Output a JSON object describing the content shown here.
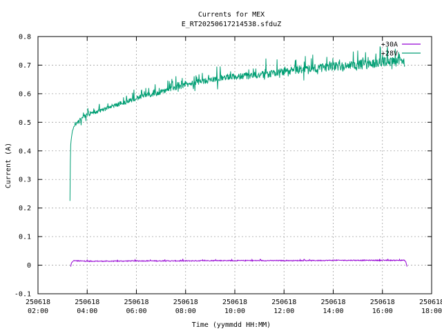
{
  "chart_data": {
    "type": "line",
    "title": "Currents for MEX",
    "subtitle": "E_RT20250617214538.sfduZ",
    "xlabel": "Time (yymmdd HH:MM)",
    "ylabel": "Current (A)",
    "xlim_hours": [
      2,
      18
    ],
    "ylim": [
      -0.1,
      0.8
    ],
    "yticks": [
      -0.1,
      0,
      0.1,
      0.2,
      0.3,
      0.4,
      0.5,
      0.6,
      0.7,
      0.8
    ],
    "ytick_labels": [
      "-0.1",
      "0",
      "0.1",
      "0.2",
      "0.3",
      "0.4",
      "0.5",
      "0.6",
      "0.7",
      "0.8"
    ],
    "xticks": [
      {
        "date": "250618",
        "time": "02:00",
        "hour": 2
      },
      {
        "date": "250618",
        "time": "04:00",
        "hour": 4
      },
      {
        "date": "250618",
        "time": "06:00",
        "hour": 6
      },
      {
        "date": "250618",
        "time": "08:00",
        "hour": 8
      },
      {
        "date": "250618",
        "time": "10:00",
        "hour": 10
      },
      {
        "date": "250618",
        "time": "12:00",
        "hour": 12
      },
      {
        "date": "250618",
        "time": "14:00",
        "hour": 14
      },
      {
        "date": "250618",
        "time": "16:00",
        "hour": 16
      },
      {
        "date": "250618",
        "time": "18:00",
        "hour": 18
      }
    ],
    "grid": true,
    "legend_position": "top-right",
    "series": [
      {
        "name": "+30A",
        "color": "#9400d3",
        "x_hours": [
          3.33,
          3.36,
          3.45,
          3.6,
          4,
          5,
          6,
          7,
          8,
          9,
          10,
          11,
          12,
          13,
          14,
          15,
          16,
          16.6,
          16.9,
          16.95,
          17.0
        ],
        "values": [
          -0.005,
          0.008,
          0.016,
          0.015,
          0.014,
          0.014,
          0.015,
          0.015,
          0.015,
          0.016,
          0.016,
          0.016,
          0.016,
          0.016,
          0.017,
          0.017,
          0.017,
          0.017,
          0.017,
          0.012,
          -0.005
        ]
      },
      {
        "name": "+28V",
        "color": "#009e73",
        "x_hours": [
          3.3,
          3.32,
          3.35,
          3.4,
          3.5,
          3.6,
          3.8,
          4.0,
          4.5,
          5.0,
          5.5,
          6.0,
          6.5,
          7.0,
          7.5,
          8.0,
          8.5,
          9.0,
          9.5,
          10.0,
          10.5,
          11.0,
          11.5,
          12.0,
          12.5,
          13.0,
          13.5,
          14.0,
          14.5,
          15.0,
          15.5,
          16.0,
          16.5,
          16.9
        ],
        "values": [
          0.225,
          0.41,
          0.44,
          0.47,
          0.49,
          0.5,
          0.515,
          0.525,
          0.54,
          0.555,
          0.57,
          0.585,
          0.595,
          0.605,
          0.62,
          0.63,
          0.64,
          0.648,
          0.655,
          0.66,
          0.662,
          0.665,
          0.67,
          0.677,
          0.682,
          0.688,
          0.69,
          0.695,
          0.698,
          0.7,
          0.705,
          0.71,
          0.713,
          0.71
        ]
      }
    ]
  }
}
